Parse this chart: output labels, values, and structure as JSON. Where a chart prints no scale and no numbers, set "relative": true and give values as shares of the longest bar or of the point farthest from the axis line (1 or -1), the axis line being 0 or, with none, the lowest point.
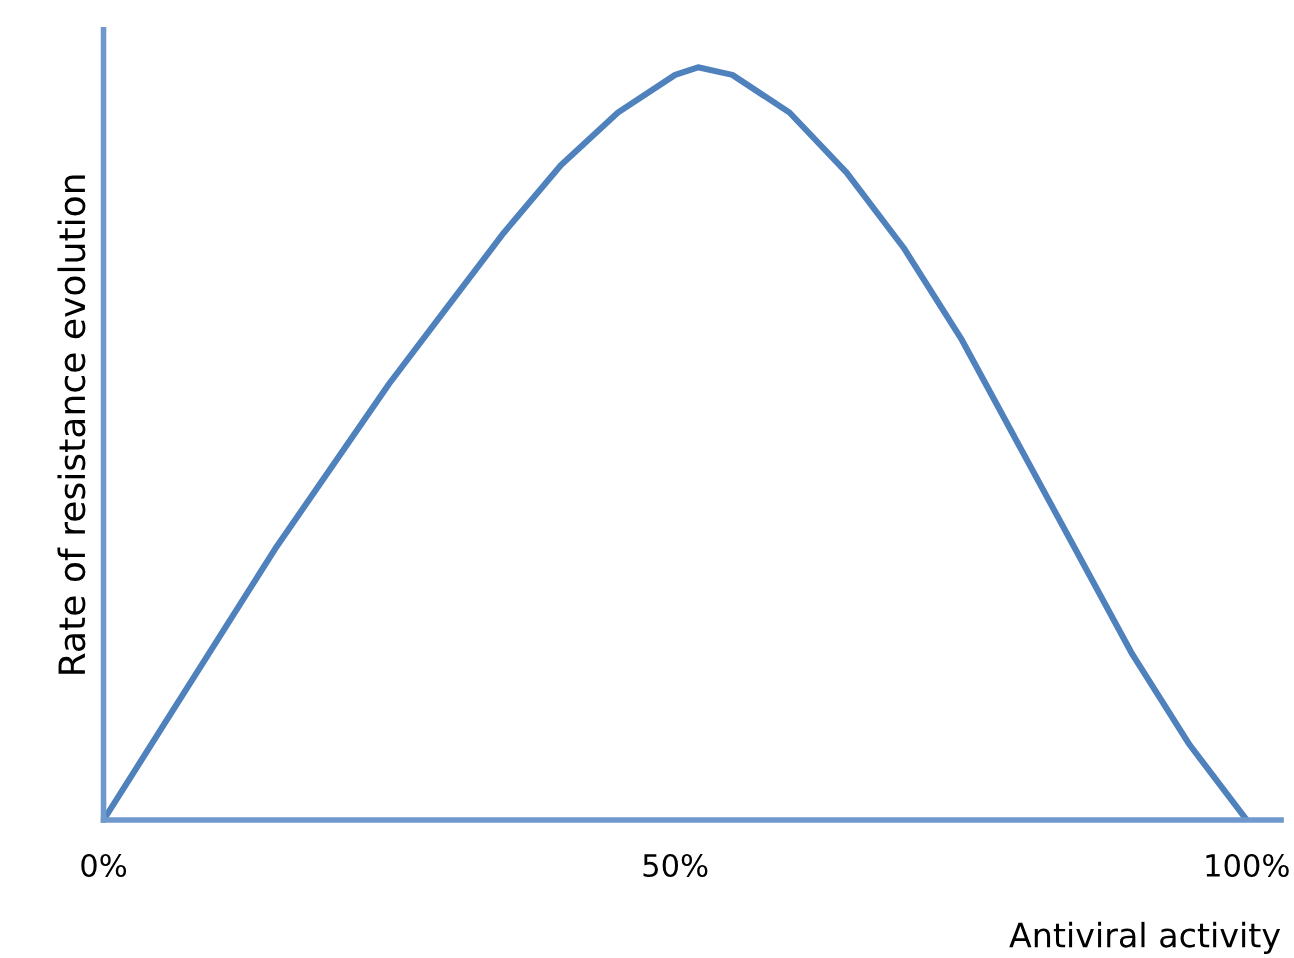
{
  "chart_data": {
    "type": "line",
    "relative": true,
    "xlabel": "Antiviral activity",
    "ylabel": "Rate of resistance evolution",
    "xlim": [
      0,
      103
    ],
    "xticks": [
      {
        "value": 0,
        "label": "0%"
      },
      {
        "value": 50,
        "label": "50%"
      },
      {
        "value": 100,
        "label": "100%"
      }
    ],
    "x": [
      0,
      5,
      10,
      15,
      20,
      25,
      30,
      35,
      40,
      45,
      50,
      52,
      55,
      60,
      65,
      70,
      75,
      80,
      85,
      90,
      95,
      100
    ],
    "series": [
      {
        "color": "#4f81bd",
        "values": [
          0,
          0.12,
          0.24,
          0.36,
          0.47,
          0.58,
          0.68,
          0.78,
          0.87,
          0.94,
          0.99,
          1.0,
          0.99,
          0.94,
          0.86,
          0.76,
          0.64,
          0.5,
          0.36,
          0.22,
          0.1,
          0
        ]
      }
    ],
    "grid": false,
    "legend": false,
    "marker": "none",
    "line_style": "solid"
  }
}
